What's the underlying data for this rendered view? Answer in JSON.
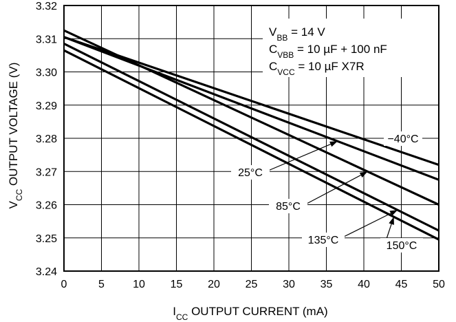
{
  "chart_data": {
    "type": "line",
    "xlabel": {
      "main": "I",
      "sub": "CC",
      "rest": " OUTPUT CURRENT (mA)"
    },
    "ylabel": {
      "main": "V",
      "sub": "CC",
      "rest": " OUTPUT VOLTAGE (V)"
    },
    "xlim": [
      0,
      50
    ],
    "ylim": [
      3.24,
      3.32
    ],
    "xticks": [
      "0",
      "5",
      "10",
      "15",
      "20",
      "25",
      "30",
      "35",
      "40",
      "45",
      "50"
    ],
    "yticks": [
      "3.24",
      "3.25",
      "3.26",
      "3.27",
      "3.28",
      "3.29",
      "3.30",
      "3.31",
      "3.32"
    ],
    "grid": true,
    "annotations": [
      {
        "main": "V",
        "sub": "BB",
        "rest": " = 14 V"
      },
      {
        "main": "C",
        "sub": "VBB",
        "rest": " = 10 µF + 100 nF"
      },
      {
        "main": "C",
        "sub": "VCC",
        "rest": " = 10 µF X7R"
      }
    ],
    "series": [
      {
        "name": "−40°C",
        "x": [
          0,
          50
        ],
        "y": [
          3.3105,
          3.272
        ]
      },
      {
        "name": "25°C",
        "x": [
          0,
          50
        ],
        "y": [
          3.3105,
          3.2675
        ]
      },
      {
        "name": "85°C",
        "x": [
          0,
          50
        ],
        "y": [
          3.3125,
          3.26
        ]
      },
      {
        "name": "135°C",
        "x": [
          0,
          50
        ],
        "y": [
          3.3085,
          3.2522
        ]
      },
      {
        "name": "150°C",
        "x": [
          0,
          50
        ],
        "y": [
          3.3065,
          3.2495
        ]
      }
    ]
  }
}
